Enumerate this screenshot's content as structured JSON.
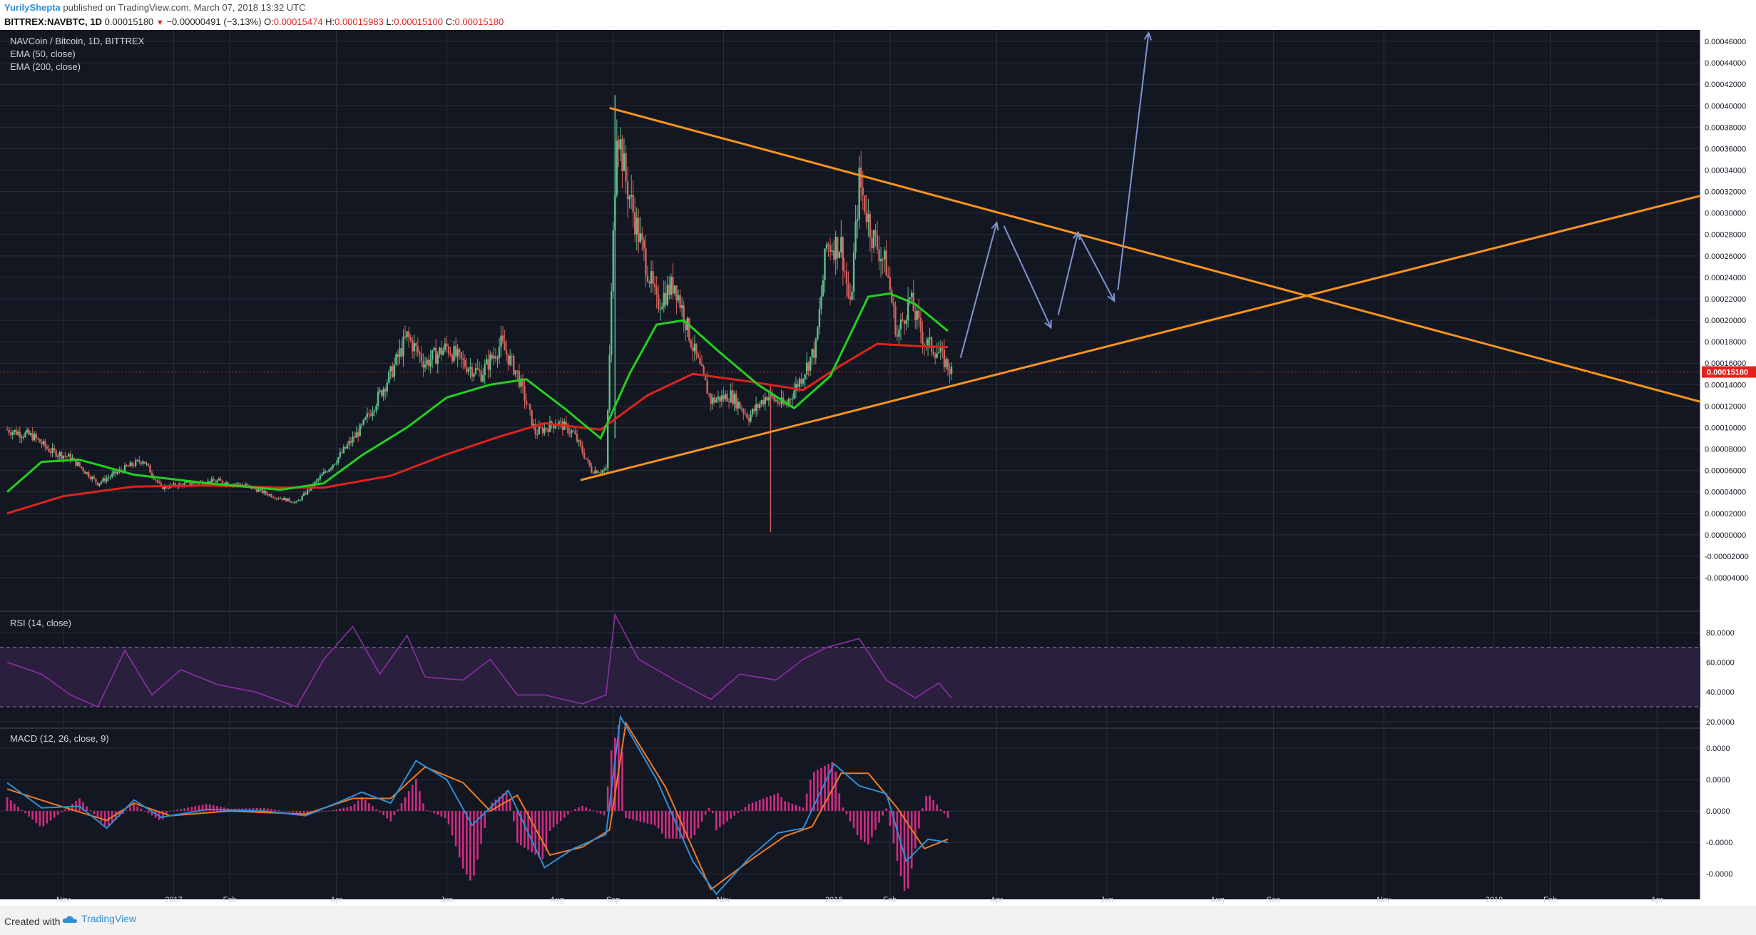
{
  "header": {
    "author": "YurilyShepta",
    "published_text": "published on TradingView.com, March 07, 2018 13:32 UTC",
    "symbol": "BITTREX:NAVBTC, 1D",
    "last_price": "0.00015180",
    "change_arrow": "▼",
    "change": "−0.00000491 (−3.13%)",
    "open_label": "O:",
    "open": "0.00015474",
    "high_label": "H:",
    "high": "0.00015983",
    "low_label": "L:",
    "low": "0.00015100",
    "close_label": "C:",
    "close": "0.00015180"
  },
  "footer": {
    "created_with": "Created with",
    "brand": "TradingView"
  },
  "colors": {
    "background": "#131722",
    "grid": "#2a2e39",
    "up_candle": "#5fbf8c",
    "down_candle": "#d4635c",
    "ema50": "#22d11e",
    "ema200": "#e0231d",
    "trendline": "#f7931e",
    "arrow": "#8094d1",
    "rsi": "#8e2fa6",
    "rsi_band": "#2a1f3d",
    "macd": "#2d8fd6",
    "signal": "#f07a22",
    "histogram": "#d02c84",
    "price_tag": "#e0231d"
  },
  "chart_data": {
    "type": "candlestick",
    "instrument": "NAVCoin / Bitcoin, 1D, BITTREX",
    "main_pane": {
      "title": "NAVCoin / Bitcoin, 1D, BITTREX",
      "indicators": [
        "EMA (50, close)",
        "EMA (200, close)"
      ],
      "y_ticks": [
        "0.00046000",
        "0.00044000",
        "0.00042000",
        "0.00040000",
        "0.00038000",
        "0.00036000",
        "0.00034000",
        "0.00032000",
        "0.00030000",
        "0.00028000",
        "0.00026000",
        "0.00024000",
        "0.00022000",
        "0.00020000",
        "0.00018000",
        "0.00016000",
        "0.00014000",
        "0.00012000",
        "0.00010000",
        "0.00008000",
        "0.00006000",
        "0.00004000",
        "0.00002000",
        "0.00000000",
        "-0.00002000",
        "-0.00004000"
      ],
      "ylim": [
        -4.2e-05,
        0.000468
      ],
      "current_price_tag": "0.00015180",
      "current_price": 0.0001518,
      "price_path": [
        [
          "2016-10-01",
          9.8e-05
        ],
        [
          "2016-10-15",
          9.2e-05
        ],
        [
          "2016-10-25",
          7.8e-05
        ],
        [
          "2016-11-05",
          7.2e-05
        ],
        [
          "2016-11-20",
          4.8e-05
        ],
        [
          "2016-12-05",
          6.2e-05
        ],
        [
          "2016-12-15",
          7e-05
        ],
        [
          "2016-12-25",
          4.4e-05
        ],
        [
          "2017-01-10",
          4.8e-05
        ],
        [
          "2017-01-25",
          5e-05
        ],
        [
          "2017-02-10",
          4.6e-05
        ],
        [
          "2017-02-25",
          3.6e-05
        ],
        [
          "2017-03-10",
          3e-05
        ],
        [
          "2017-03-20",
          4.8e-05
        ],
        [
          "2017-04-01",
          7e-05
        ],
        [
          "2017-04-15",
          0.0001
        ],
        [
          "2017-05-01",
          0.00015
        ],
        [
          "2017-05-10",
          0.000185
        ],
        [
          "2017-05-20",
          0.00016
        ],
        [
          "2017-06-01",
          0.000175
        ],
        [
          "2017-06-10",
          0.00016
        ],
        [
          "2017-06-20",
          0.00015
        ],
        [
          "2017-07-01",
          0.000178
        ],
        [
          "2017-07-10",
          0.00015
        ],
        [
          "2017-07-20",
          9.5e-05
        ],
        [
          "2017-08-01",
          0.000105
        ],
        [
          "2017-08-10",
          9.5e-05
        ],
        [
          "2017-08-20",
          6e-05
        ],
        [
          "2017-08-28",
          6e-05
        ],
        [
          "2017-09-03",
          0.000385
        ],
        [
          "2017-09-08",
          0.00033
        ],
        [
          "2017-09-15",
          0.00028
        ],
        [
          "2017-09-25",
          0.000215
        ],
        [
          "2017-10-05",
          0.000235
        ],
        [
          "2017-10-15",
          0.000175
        ],
        [
          "2017-10-25",
          0.000125
        ],
        [
          "2017-11-05",
          0.00013
        ],
        [
          "2017-11-15",
          0.00011
        ],
        [
          "2017-11-25",
          0.00013
        ],
        [
          "2017-12-05",
          0.00012
        ],
        [
          "2017-12-15",
          0.00015
        ],
        [
          "2017-12-22",
          0.000175
        ],
        [
          "2017-12-28",
          0.00027
        ],
        [
          "2018-01-05",
          0.00027
        ],
        [
          "2018-01-10",
          0.00021
        ],
        [
          "2018-01-15",
          0.00033
        ],
        [
          "2018-01-22",
          0.00028
        ],
        [
          "2018-01-30",
          0.00025
        ],
        [
          "2018-02-05",
          0.000185
        ],
        [
          "2018-02-12",
          0.00022
        ],
        [
          "2018-02-20",
          0.00018
        ],
        [
          "2018-02-28",
          0.00017
        ],
        [
          "2018-03-07",
          0.000152
        ]
      ],
      "ema50_path": [
        [
          "2016-10-01",
          4e-05
        ],
        [
          "2016-10-20",
          6.8e-05
        ],
        [
          "2016-11-10",
          7e-05
        ],
        [
          "2016-12-10",
          5.6e-05
        ],
        [
          "2017-01-20",
          4.8e-05
        ],
        [
          "2017-03-01",
          4.2e-05
        ],
        [
          "2017-03-25",
          4.8e-05
        ],
        [
          "2017-04-15",
          7.4e-05
        ],
        [
          "2017-05-10",
          0.0001
        ],
        [
          "2017-06-01",
          0.000128
        ],
        [
          "2017-06-25",
          0.00014
        ],
        [
          "2017-07-15",
          0.000145
        ],
        [
          "2017-08-05",
          0.000118
        ],
        [
          "2017-08-25",
          9e-05
        ],
        [
          "2017-09-10",
          0.00015
        ],
        [
          "2017-09-25",
          0.000196
        ],
        [
          "2017-10-10",
          0.0002
        ],
        [
          "2017-10-30",
          0.00017
        ],
        [
          "2017-11-20",
          0.00014
        ],
        [
          "2017-12-10",
          0.000118
        ],
        [
          "2017-12-30",
          0.000148
        ],
        [
          "2018-01-20",
          0.000222
        ],
        [
          "2018-02-01",
          0.000225
        ],
        [
          "2018-02-15",
          0.000215
        ],
        [
          "2018-03-05",
          0.00019
        ]
      ],
      "ema200_path": [
        [
          "2016-10-01",
          2e-05
        ],
        [
          "2016-11-01",
          3.6e-05
        ],
        [
          "2016-12-10",
          4.5e-05
        ],
        [
          "2017-01-20",
          4.6e-05
        ],
        [
          "2017-03-01",
          4.4e-05
        ],
        [
          "2017-03-25",
          4.4e-05
        ],
        [
          "2017-05-01",
          5.5e-05
        ],
        [
          "2017-06-01",
          7.5e-05
        ],
        [
          "2017-07-01",
          9.2e-05
        ],
        [
          "2017-07-25",
          0.000104
        ],
        [
          "2017-08-25",
          9.8e-05
        ],
        [
          "2017-09-20",
          0.00013
        ],
        [
          "2017-10-15",
          0.00015
        ],
        [
          "2017-11-15",
          0.000143
        ],
        [
          "2017-12-15",
          0.000135
        ],
        [
          "2018-01-05",
          0.000158
        ],
        [
          "2018-01-25",
          0.000178
        ],
        [
          "2018-02-15",
          0.000176
        ],
        [
          "2018-03-05",
          0.000175
        ]
      ],
      "drawings": {
        "upper_trendline": [
          [
            "2017-08-30",
            0.000398
          ],
          [
            "2019-04-25",
            0.000124
          ]
        ],
        "lower_trendline": [
          [
            "2017-08-14",
            5.1e-05
          ],
          [
            "2019-04-25",
            0.000316
          ]
        ],
        "projection_arrows": [
          [
            [
              "2018-03-12",
              0.000165
            ],
            [
              "2018-04-01",
              0.000291
            ]
          ],
          [
            [
              "2018-04-05",
              0.000288
            ],
            [
              "2018-05-01",
              0.000193
            ]
          ],
          [
            [
              "2018-05-05",
              0.000205
            ],
            [
              "2018-05-16",
              0.000282
            ]
          ],
          [
            [
              "2018-05-16",
              0.000282
            ],
            [
              "2018-06-05",
              0.000218
            ]
          ],
          [
            [
              "2018-06-07",
              0.000228
            ],
            [
              "2018-06-24",
              0.000468
            ]
          ]
        ]
      }
    },
    "rsi_pane": {
      "title": "RSI (14, close)",
      "y_ticks": [
        "80.0000",
        "60.0000",
        "40.0000",
        "20.0000"
      ],
      "ylim": [
        18,
        92
      ],
      "bands": [
        70,
        30
      ],
      "rsi_path": [
        [
          "2016-10-01",
          60
        ],
        [
          "2016-10-20",
          52
        ],
        [
          "2016-11-05",
          38
        ],
        [
          "2016-11-20",
          30
        ],
        [
          "2016-12-05",
          68
        ],
        [
          "2016-12-20",
          38
        ],
        [
          "2017-01-05",
          55
        ],
        [
          "2017-01-25",
          45
        ],
        [
          "2017-02-15",
          40
        ],
        [
          "2017-03-10",
          30
        ],
        [
          "2017-03-25",
          62
        ],
        [
          "2017-04-10",
          84
        ],
        [
          "2017-04-25",
          52
        ],
        [
          "2017-05-10",
          78
        ],
        [
          "2017-05-20",
          50
        ],
        [
          "2017-06-10",
          48
        ],
        [
          "2017-06-25",
          62
        ],
        [
          "2017-07-10",
          38
        ],
        [
          "2017-07-25",
          38
        ],
        [
          "2017-08-15",
          32
        ],
        [
          "2017-08-28",
          38
        ],
        [
          "2017-09-02",
          92
        ],
        [
          "2017-09-15",
          62
        ],
        [
          "2017-10-05",
          48
        ],
        [
          "2017-10-25",
          35
        ],
        [
          "2017-11-10",
          52
        ],
        [
          "2017-11-30",
          48
        ],
        [
          "2017-12-15",
          62
        ],
        [
          "2017-12-28",
          70
        ],
        [
          "2018-01-15",
          76
        ],
        [
          "2018-01-30",
          48
        ],
        [
          "2018-02-15",
          36
        ],
        [
          "2018-02-28",
          46
        ],
        [
          "2018-03-07",
          36
        ]
      ]
    },
    "macd_pane": {
      "title": "MACD (12, 26, close, 9)",
      "y_ticks": [
        "0.0000",
        "0.0000",
        "0.0000",
        "-0.0000",
        "-0.0000"
      ],
      "ylim": [
        -5.4,
        5
      ],
      "macd_path": [
        [
          "2016-10-01",
          1.8
        ],
        [
          "2016-10-20",
          0.2
        ],
        [
          "2016-11-10",
          0.3
        ],
        [
          "2016-11-25",
          -1.1
        ],
        [
          "2016-12-10",
          0.7
        ],
        [
          "2016-12-25",
          -0.4
        ],
        [
          "2017-01-20",
          0.1
        ],
        [
          "2017-02-20",
          0.0
        ],
        [
          "2017-03-15",
          -0.3
        ],
        [
          "2017-04-01",
          0.5
        ],
        [
          "2017-04-15",
          1.2
        ],
        [
          "2017-05-01",
          0.5
        ],
        [
          "2017-05-15",
          3.2
        ],
        [
          "2017-06-01",
          2.0
        ],
        [
          "2017-06-15",
          -0.9
        ],
        [
          "2017-07-05",
          1.3
        ],
        [
          "2017-07-25",
          -3.6
        ],
        [
          "2017-08-10",
          -2.4
        ],
        [
          "2017-08-28",
          -1.5
        ],
        [
          "2017-09-05",
          6.0
        ],
        [
          "2017-09-25",
          2.0
        ],
        [
          "2017-10-15",
          -3.2
        ],
        [
          "2017-10-28",
          -5.3
        ],
        [
          "2017-11-15",
          -3.0
        ],
        [
          "2017-12-01",
          -1.4
        ],
        [
          "2017-12-15",
          -1.1
        ],
        [
          "2018-01-01",
          3.0
        ],
        [
          "2018-01-15",
          1.6
        ],
        [
          "2018-01-30",
          1.1
        ],
        [
          "2018-02-10",
          -3.2
        ],
        [
          "2018-02-22",
          -1.8
        ],
        [
          "2018-03-05",
          -2.0
        ]
      ],
      "signal_path": [
        [
          "2016-10-01",
          1.4
        ],
        [
          "2016-10-25",
          0.5
        ],
        [
          "2016-11-25",
          -0.6
        ],
        [
          "2016-12-10",
          0.5
        ],
        [
          "2016-12-30",
          -0.3
        ],
        [
          "2017-02-01",
          0.0
        ],
        [
          "2017-03-15",
          -0.2
        ],
        [
          "2017-04-10",
          0.8
        ],
        [
          "2017-05-01",
          0.8
        ],
        [
          "2017-05-20",
          2.8
        ],
        [
          "2017-06-10",
          1.8
        ],
        [
          "2017-06-25",
          0.0
        ],
        [
          "2017-07-10",
          1.0
        ],
        [
          "2017-07-28",
          -2.8
        ],
        [
          "2017-08-15",
          -2.3
        ],
        [
          "2017-08-30",
          -1.2
        ],
        [
          "2017-09-08",
          5.6
        ],
        [
          "2017-09-30",
          1.5
        ],
        [
          "2017-10-25",
          -5.0
        ],
        [
          "2017-11-15",
          -3.2
        ],
        [
          "2017-12-05",
          -1.6
        ],
        [
          "2017-12-20",
          -1.0
        ],
        [
          "2018-01-05",
          2.4
        ],
        [
          "2018-01-20",
          2.4
        ],
        [
          "2018-02-05",
          0.2
        ],
        [
          "2018-02-20",
          -2.4
        ],
        [
          "2018-03-05",
          -1.8
        ]
      ]
    },
    "x_ticks": [
      {
        "label": "Nov",
        "date": "2016-11-01"
      },
      {
        "label": "2017",
        "date": "2017-01-01"
      },
      {
        "label": "Feb",
        "date": "2017-02-01"
      },
      {
        "label": "Apr",
        "date": "2017-04-01"
      },
      {
        "label": "Jun",
        "date": "2017-06-01"
      },
      {
        "label": "Aug",
        "date": "2017-08-01"
      },
      {
        "label": "Sep",
        "date": "2017-09-01"
      },
      {
        "label": "Nov",
        "date": "2017-11-01"
      },
      {
        "label": "2018",
        "date": "2018-01-01"
      },
      {
        "label": "Feb",
        "date": "2018-02-01"
      },
      {
        "label": "Apr",
        "date": "2018-04-01"
      },
      {
        "label": "Jun",
        "date": "2018-06-01"
      },
      {
        "label": "Aug",
        "date": "2018-08-01"
      },
      {
        "label": "Sep",
        "date": "2018-09-01"
      },
      {
        "label": "Nov",
        "date": "2018-11-01"
      },
      {
        "label": "2019",
        "date": "2019-01-01"
      },
      {
        "label": "Feb",
        "date": "2019-02-01"
      },
      {
        "label": "Apr",
        "date": "2019-04-01"
      }
    ],
    "x_range": [
      "2016-09-27",
      "2019-04-25"
    ]
  }
}
